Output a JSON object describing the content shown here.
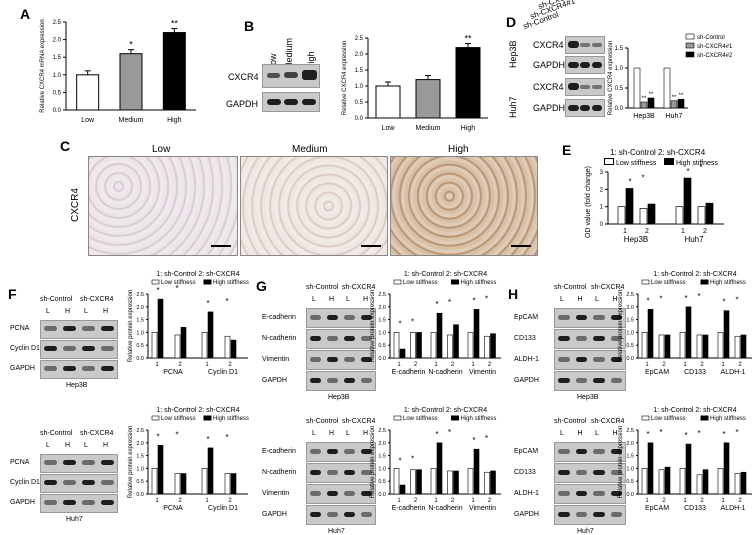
{
  "labels": {
    "A": "A",
    "B": "B",
    "C": "C",
    "D": "D",
    "E": "E",
    "F": "F",
    "G": "G",
    "H": "H"
  },
  "panelA": {
    "ylabel": "Relative CXCR4 mRNA expression",
    "categories": [
      "Low",
      "Medium",
      "High"
    ],
    "values": [
      1.0,
      1.6,
      2.2
    ],
    "yticks": [
      "0.0",
      "0.5",
      "1.0",
      "1.5",
      "2.0",
      "2.5"
    ],
    "sig": [
      "",
      "*",
      "**"
    ]
  },
  "panelB": {
    "lanes": [
      "Low",
      "Medium",
      "High"
    ],
    "blot_rows": [
      "CXCR4",
      "GAPDH"
    ],
    "ylabel": "Relative CXCR4 expression",
    "categories": [
      "Low",
      "Medium",
      "High"
    ],
    "values": [
      1.0,
      1.2,
      2.2
    ],
    "yticks": [
      "0.0",
      "0.5",
      "1.0",
      "1.5",
      "2.0",
      "2.5"
    ],
    "sig": [
      "",
      "",
      "**"
    ]
  },
  "panelC": {
    "columns": [
      "Low",
      "Medium",
      "High"
    ],
    "rowlabel": "CXCR4"
  },
  "panelD": {
    "lanes": [
      "sh-Control",
      "sh-CXCR4#1",
      "sh-CXCR4#2"
    ],
    "cells": [
      "Hep3B",
      "Huh7"
    ],
    "blot_rows": [
      "CXCR4",
      "GAPDH",
      "CXCR4",
      "GAPDH"
    ],
    "ylabel": "Relative CXCR4 expression",
    "legend": [
      "sh-Control",
      "sh-CXCR4#1",
      "sh-CXCR4#2"
    ],
    "groups": [
      "Hep3B",
      "Huh7"
    ],
    "values": [
      [
        1.0,
        0.15,
        0.25
      ],
      [
        1.0,
        0.18,
        0.22
      ]
    ],
    "yticks": [
      "0.0",
      "0.5",
      "1.0",
      "1.5"
    ],
    "sig": "**"
  },
  "panelE": {
    "legend_top": "1: sh-Control  2: sh-CXCR4",
    "legend": [
      "Low stiffness",
      "High stiffness"
    ],
    "ylabel": "OD value (fold change)",
    "groups": [
      {
        "ticks": [
          "1",
          "2"
        ],
        "name": "Hep3B"
      },
      {
        "ticks": [
          "1",
          "2"
        ],
        "name": "Huh7"
      }
    ],
    "values": [
      [
        1.0,
        2.05,
        0.9,
        1.15
      ],
      [
        1.0,
        2.65,
        1.0,
        1.2
      ]
    ],
    "yticks": [
      "0",
      "1",
      "2",
      "3"
    ]
  },
  "panelF": {
    "top": {
      "header": [
        "sh-Control",
        "sh-CXCR4"
      ],
      "lanes": [
        "L",
        "H",
        "L",
        "H"
      ],
      "rows": [
        "PCNA",
        "Cyclin D1",
        "GAPDH"
      ],
      "cell": "Hep3B"
    },
    "bottom": {
      "header": [
        "sh-Control",
        "sh-CXCR4"
      ],
      "lanes": [
        "L",
        "H",
        "L",
        "H"
      ],
      "rows": [
        "PCNA",
        "Cyclin D1",
        "GAPDH"
      ],
      "cell": "Huh7"
    },
    "legend_top": "1: sh-Control   2: sh-CXCR4",
    "legend": [
      "Low stiffness",
      "High stiffness"
    ],
    "ylabel": "Relative protein expression",
    "groups": [
      "PCNA",
      "Cyclin D1"
    ],
    "ticks": [
      "1",
      "2"
    ],
    "yticks": [
      "0.0",
      "0.5",
      "1.0",
      "1.5",
      "2.0",
      "2.5"
    ],
    "values_top": [
      [
        1.0,
        2.3,
        0.9,
        1.2
      ],
      [
        1.0,
        1.8,
        0.85,
        0.7
      ]
    ],
    "values_bottom": [
      [
        1.0,
        1.9,
        0.8,
        0.8
      ],
      [
        1.0,
        1.8,
        0.8,
        0.8
      ]
    ]
  },
  "panelG": {
    "top": {
      "header": [
        "sh-Control",
        "sh-CXCR4"
      ],
      "lanes": [
        "L",
        "H",
        "L",
        "H"
      ],
      "rows": [
        "E-cadherin",
        "N-cadherin",
        "Vimentin",
        "GAPDH"
      ],
      "cell": "Hep3B"
    },
    "bottom": {
      "header": [
        "sh-Control",
        "sh-CXCR4"
      ],
      "lanes": [
        "L",
        "H",
        "L",
        "H"
      ],
      "rows": [
        "E-cadherin",
        "N-cadherin",
        "Vimentin",
        "GAPDH"
      ],
      "cell": "Huh7"
    },
    "legend_top": "1: sh-Control   2: sh-CXCR4",
    "legend": [
      "Low stiffness",
      "High stiffness"
    ],
    "ylabel": "Relative protein expression",
    "groups": [
      "E-cadherin",
      "N-cadherin",
      "Vimentin"
    ],
    "ticks": [
      "1",
      "2"
    ],
    "yticks": [
      "0.0",
      "0.5",
      "1.0",
      "1.5",
      "2.0",
      "2.5"
    ],
    "values_top": [
      [
        1.0,
        0.35,
        1.0,
        1.0
      ],
      [
        1.0,
        1.75,
        0.9,
        1.3
      ],
      [
        1.0,
        1.9,
        0.85,
        0.95
      ]
    ],
    "values_bottom": [
      [
        1.0,
        0.35,
        0.95,
        0.95
      ],
      [
        1.0,
        2.0,
        0.9,
        0.9
      ],
      [
        1.0,
        1.75,
        0.85,
        0.9
      ]
    ]
  },
  "panelH": {
    "top": {
      "header": [
        "sh-Control",
        "sh-CXCR4"
      ],
      "lanes": [
        "L",
        "H",
        "L",
        "H"
      ],
      "rows": [
        "EpCAM",
        "CD133",
        "ALDH-1",
        "GAPDH"
      ],
      "cell": "Hep3B"
    },
    "bottom": {
      "header": [
        "sh-Control",
        "sh-CXCR4"
      ],
      "lanes": [
        "L",
        "H",
        "L",
        "H"
      ],
      "rows": [
        "EpCAM",
        "CD133",
        "ALDH-1",
        "GAPDH"
      ],
      "cell": "Huh7"
    },
    "legend_top": "1: sh-Control   2: sh-CXCR4",
    "legend": [
      "Low stiffness",
      "High stiffness"
    ],
    "ylabel": "Relative protein expression",
    "groups": [
      "EpCAM",
      "CD133",
      "ALDH-1"
    ],
    "ticks": [
      "1",
      "2"
    ],
    "yticks": [
      "0.0",
      "0.5",
      "1.0",
      "1.5",
      "2.0",
      "2.5"
    ],
    "values_top": [
      [
        1.0,
        1.9,
        0.9,
        0.9
      ],
      [
        1.0,
        2.0,
        0.9,
        0.9
      ],
      [
        1.0,
        1.85,
        0.85,
        0.9
      ]
    ],
    "values_bottom": [
      [
        1.0,
        2.0,
        0.95,
        1.05
      ],
      [
        1.0,
        1.95,
        0.75,
        0.95
      ],
      [
        1.0,
        2.0,
        0.8,
        0.85
      ]
    ]
  },
  "chart_data": [
    {
      "type": "bar",
      "panel": "A",
      "categories": [
        "Low",
        "Medium",
        "High"
      ],
      "values": [
        1.0,
        1.6,
        2.2
      ],
      "ylabel": "Relative CXCR4 mRNA expression",
      "ylim": [
        0,
        2.5
      ]
    },
    {
      "type": "bar",
      "panel": "B",
      "categories": [
        "Low",
        "Medium",
        "High"
      ],
      "values": [
        1.0,
        1.2,
        2.2
      ],
      "ylabel": "Relative CXCR4 expression",
      "ylim": [
        0,
        2.5
      ]
    },
    {
      "type": "bar",
      "panel": "D",
      "categories": [
        "Hep3B",
        "Huh7"
      ],
      "series": [
        {
          "name": "sh-Control",
          "values": [
            1.0,
            1.0
          ]
        },
        {
          "name": "sh-CXCR4#1",
          "values": [
            0.15,
            0.18
          ]
        },
        {
          "name": "sh-CXCR4#2",
          "values": [
            0.25,
            0.22
          ]
        }
      ],
      "ylabel": "Relative CXCR4 expression",
      "ylim": [
        0,
        1.5
      ]
    },
    {
      "type": "bar",
      "panel": "E",
      "categories": [
        "Hep3B 1",
        "Hep3B 2",
        "Huh7 1",
        "Huh7 2"
      ],
      "series": [
        {
          "name": "Low stiffness",
          "values": [
            1.0,
            0.9,
            1.0,
            1.0
          ]
        },
        {
          "name": "High stiffness",
          "values": [
            2.05,
            1.15,
            2.65,
            1.2
          ]
        }
      ],
      "ylabel": "OD value (fold change)",
      "ylim": [
        0,
        3
      ]
    }
  ]
}
